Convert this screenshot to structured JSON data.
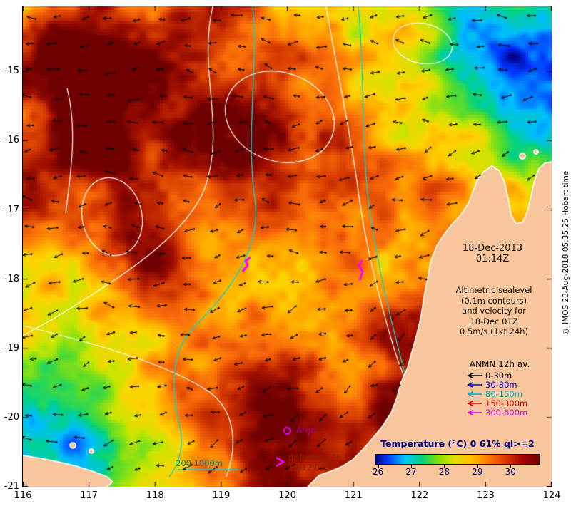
{
  "colors": {
    "land": "#f7c69c",
    "coastline": "#ffffff",
    "ssh_contour": "#ffffff",
    "bathy_contour": "#00d8d8",
    "arrows": "#000000",
    "drifter": "#ff00ff"
  },
  "axes": {
    "x_ticks": [
      "116",
      "117",
      "118",
      "119",
      "120",
      "121",
      "122",
      "123",
      "124"
    ],
    "y_ticks": [
      "-15",
      "-16",
      "-17",
      "-18",
      "-19",
      "-20",
      "-21"
    ]
  },
  "overlay": {
    "datetime_line1": "18-Dec-2013",
    "datetime_line2": "01:14Z",
    "info_lines": [
      "Altimetric sealevel",
      "(0.1m contours)",
      "and velocity for",
      "18-Dec 01Z",
      "0.5m/s (1kt 24h)"
    ],
    "anmn_title": "ANMN 12h av.",
    "depth_legend": [
      {
        "label": "0-30m",
        "color": "#000000"
      },
      {
        "label": "30-80m",
        "color": "#0000cd"
      },
      {
        "label": "80-150m",
        "color": "#00b0c8"
      },
      {
        "label": "150-300m",
        "color": "#d00000"
      },
      {
        "label": "300-600m",
        "color": "#e000e0"
      }
    ],
    "argo_label": "Argo",
    "drifters_line1": "drifters@12h to",
    "drifters_line2": "18/12 06Z",
    "bathymetry_label": "200 1000m"
  },
  "colorbar": {
    "title": "Temperature (°C) 0 61% ql>=2",
    "ticks": [
      "26",
      "27",
      "28",
      "29",
      "30"
    ]
  },
  "watermark": "© IMOS 23-Aug-2018 05:35:25 Hobart time"
}
